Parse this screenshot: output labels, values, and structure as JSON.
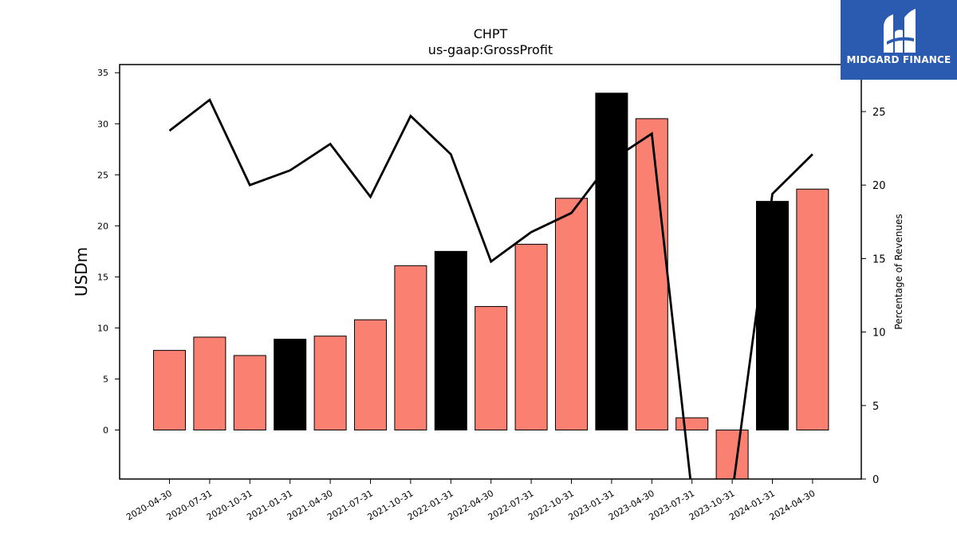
{
  "logo": {
    "text": "MIDGARD FINANCE",
    "icon": "midgard-logo-icon",
    "bg": "#2b5bb0"
  },
  "chart_data": {
    "type": "bar",
    "title": "CHPT",
    "subtitle": "us-gaap:GrossProfit",
    "ylabel": "USDm",
    "y2label": "Percentage of Revenues",
    "ylim": [
      -4.8,
      35.8
    ],
    "y2lim": [
      0,
      28.2
    ],
    "yticks": [
      0,
      5,
      10,
      15,
      20,
      25,
      30,
      35
    ],
    "y2ticks": [
      0,
      5,
      10,
      15,
      20,
      25
    ],
    "categories": [
      "2020-04-30",
      "2020-07-31",
      "2020-10-31",
      "2021-01-31",
      "2021-04-30",
      "2021-07-31",
      "2021-10-31",
      "2022-01-31",
      "2022-04-30",
      "2022-07-31",
      "2022-10-31",
      "2023-01-31",
      "2023-04-30",
      "2023-07-31",
      "2023-10-31",
      "2024-01-31",
      "2024-04-30"
    ],
    "series": [
      {
        "values": [
          7.8,
          9.1,
          7.3,
          8.9,
          9.2,
          10.8,
          16.1,
          17.5,
          12.1,
          18.2,
          22.7,
          33.0,
          30.5,
          1.2,
          -5.0,
          22.4,
          23.6
        ],
        "colors": [
          "#fa8072",
          "#fa8072",
          "#fa8072",
          "#000000",
          "#fa8072",
          "#fa8072",
          "#fa8072",
          "#000000",
          "#fa8072",
          "#fa8072",
          "#fa8072",
          "#000000",
          "#fa8072",
          "#fa8072",
          "#fa8072",
          "#000000",
          "#fa8072"
        ]
      },
      {
        "type": "line",
        "axis": "right",
        "color": "#000000",
        "values": [
          23.7,
          25.8,
          20.0,
          21.0,
          22.8,
          19.2,
          24.7,
          22.1,
          14.8,
          16.8,
          18.1,
          21.7,
          23.5,
          -1.0,
          -1.0,
          19.4,
          22.1
        ]
      }
    ],
    "colors": {
      "bar": "#fa8072",
      "highlight": "#000000",
      "line": "#000000"
    },
    "legend": "none",
    "grid": false
  }
}
